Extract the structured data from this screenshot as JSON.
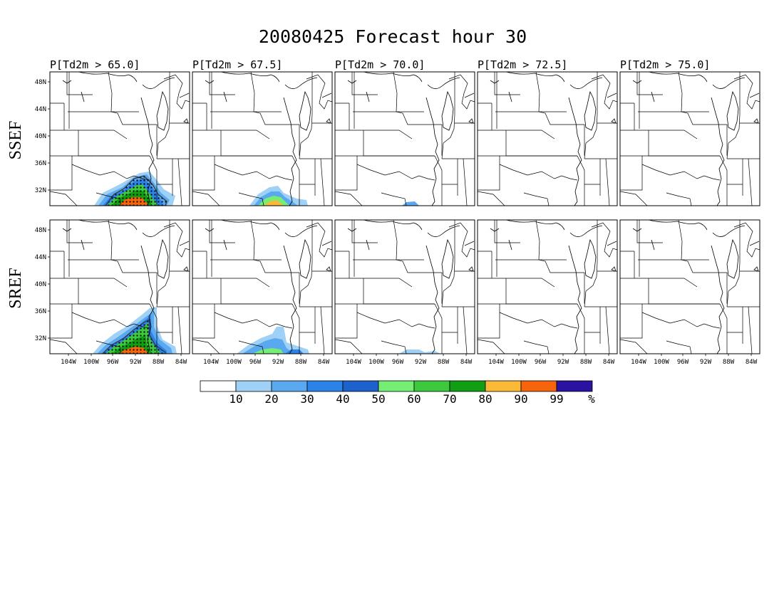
{
  "title": "20080425 Forecast hour 30",
  "row_labels": [
    "SSEF",
    "SREF"
  ],
  "panel_titles": [
    "P[Td2m > 65.0]",
    "P[Td2m > 67.5]",
    "P[Td2m > 70.0]",
    "P[Td2m > 72.5]",
    "P[Td2m > 75.0]"
  ],
  "lat_ticks": [
    "48N",
    "44N",
    "40N",
    "36N",
    "32N"
  ],
  "lon_ticks": [
    "104W",
    "100W",
    "96W",
    "92W",
    "88W",
    "84W"
  ],
  "colorbar": {
    "labels": [
      "10",
      "20",
      "30",
      "40",
      "50",
      "60",
      "70",
      "80",
      "90",
      "99"
    ],
    "unit": "%",
    "colors": [
      "#ffffff",
      "#9fd0f5",
      "#5aa8f0",
      "#2b83e8",
      "#1c61cc",
      "#74ee74",
      "#3ec83e",
      "#129e12",
      "#fbb938",
      "#f6650b",
      "#2b12a0"
    ]
  },
  "chart_data": {
    "type": "heatmap",
    "title": "20080425 Forecast hour 30",
    "rows": [
      "SSEF",
      "SREF"
    ],
    "columns": [
      "P[Td2m > 65.0]",
      "P[Td2m > 67.5]",
      "P[Td2m > 70.0]",
      "P[Td2m > 72.5]",
      "P[Td2m > 75.0]"
    ],
    "lat_range": [
      30,
      50
    ],
    "lon_range": [
      -106,
      -82
    ],
    "legend_levels": [
      10,
      20,
      30,
      40,
      50,
      60,
      70,
      80,
      90,
      99
    ],
    "max_probability": [
      [
        95,
        70,
        20,
        0,
        0
      ],
      [
        90,
        55,
        20,
        0,
        0
      ]
    ]
  }
}
